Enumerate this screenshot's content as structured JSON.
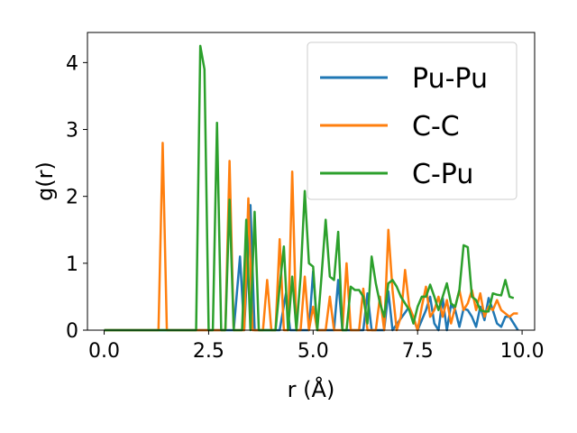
{
  "chart_data": {
    "type": "line",
    "title": "",
    "xlabel": "r (Å)",
    "ylabel": "g(r)",
    "xlim": [
      -0.4,
      10.3
    ],
    "ylim": [
      0,
      4.45
    ],
    "xticks": [
      0.0,
      2.5,
      5.0,
      7.5,
      10.0
    ],
    "xtick_labels": [
      "0.0",
      "2.5",
      "5.0",
      "7.5",
      "10.0"
    ],
    "yticks": [
      0,
      1,
      2,
      3,
      4
    ],
    "ytick_labels": [
      "0",
      "1",
      "2",
      "3",
      "4"
    ],
    "grid": false,
    "legend": "top-right",
    "series": [
      {
        "name": "Pu-Pu",
        "color": "#1f77b4",
        "points": [
          [
            0,
            0
          ],
          [
            2.9,
            0
          ],
          [
            3.1,
            0
          ],
          [
            3.25,
            1.1
          ],
          [
            3.35,
            0
          ],
          [
            3.5,
            1.87
          ],
          [
            3.6,
            0
          ],
          [
            4.2,
            0
          ],
          [
            4.35,
            0.55
          ],
          [
            4.45,
            0
          ],
          [
            4.9,
            0
          ],
          [
            5.0,
            0.88
          ],
          [
            5.1,
            0
          ],
          [
            5.5,
            0
          ],
          [
            5.6,
            0.75
          ],
          [
            5.7,
            0
          ],
          [
            6.2,
            0
          ],
          [
            6.3,
            0.55
          ],
          [
            6.4,
            0
          ],
          [
            6.7,
            0
          ],
          [
            6.8,
            0.58
          ],
          [
            6.9,
            0
          ],
          [
            7.3,
            0.35
          ],
          [
            7.5,
            0
          ],
          [
            7.7,
            0.3
          ],
          [
            7.8,
            0.5
          ],
          [
            7.9,
            0.1
          ],
          [
            8.0,
            0
          ],
          [
            8.1,
            0.48
          ],
          [
            8.2,
            0
          ],
          [
            8.3,
            0.38
          ],
          [
            8.4,
            0.3
          ],
          [
            8.5,
            0.05
          ],
          [
            8.6,
            0.32
          ],
          [
            8.7,
            0.3
          ],
          [
            8.8,
            0.2
          ],
          [
            8.9,
            0.05
          ],
          [
            9.0,
            0.35
          ],
          [
            9.1,
            0.15
          ],
          [
            9.2,
            0.48
          ],
          [
            9.3,
            0.3
          ],
          [
            9.4,
            0.1
          ],
          [
            9.5,
            0.05
          ],
          [
            9.6,
            0.2
          ],
          [
            9.7,
            0.2
          ],
          [
            9.8,
            0.1
          ],
          [
            9.9,
            0
          ]
        ]
      },
      {
        "name": "C-C",
        "color": "#ff7f0e",
        "points": [
          [
            0,
            0
          ],
          [
            1.3,
            0
          ],
          [
            1.4,
            2.8
          ],
          [
            1.5,
            0
          ],
          [
            2.9,
            0
          ],
          [
            3.0,
            2.53
          ],
          [
            3.1,
            0
          ],
          [
            3.35,
            0
          ],
          [
            3.45,
            1.97
          ],
          [
            3.55,
            0
          ],
          [
            3.8,
            0
          ],
          [
            3.9,
            0.75
          ],
          [
            4.0,
            0
          ],
          [
            4.1,
            0
          ],
          [
            4.2,
            1.36
          ],
          [
            4.3,
            0
          ],
          [
            4.4,
            0
          ],
          [
            4.5,
            2.37
          ],
          [
            4.6,
            0
          ],
          [
            4.7,
            0
          ],
          [
            4.8,
            0.8
          ],
          [
            4.9,
            0
          ],
          [
            5.0,
            0.35
          ],
          [
            5.1,
            0
          ],
          [
            5.3,
            0
          ],
          [
            5.4,
            0.5
          ],
          [
            5.5,
            0
          ],
          [
            5.7,
            0
          ],
          [
            5.8,
            1.0
          ],
          [
            5.9,
            0
          ],
          [
            6.1,
            0
          ],
          [
            6.2,
            0.62
          ],
          [
            6.3,
            0
          ],
          [
            6.5,
            0
          ],
          [
            6.6,
            0.5
          ],
          [
            6.7,
            0
          ],
          [
            6.8,
            1.5
          ],
          [
            6.9,
            0.6
          ],
          [
            7.0,
            0
          ],
          [
            7.1,
            0.2
          ],
          [
            7.2,
            0.9
          ],
          [
            7.3,
            0.35
          ],
          [
            7.4,
            0.2
          ],
          [
            7.5,
            0
          ],
          [
            7.6,
            0.35
          ],
          [
            7.7,
            0.65
          ],
          [
            7.8,
            0.2
          ],
          [
            7.9,
            0.3
          ],
          [
            8.0,
            0.5
          ],
          [
            8.1,
            0.2
          ],
          [
            8.2,
            0.45
          ],
          [
            8.3,
            0.1
          ],
          [
            8.4,
            0.35
          ],
          [
            8.5,
            0.6
          ],
          [
            8.6,
            0.3
          ],
          [
            8.7,
            0.4
          ],
          [
            8.8,
            0.6
          ],
          [
            8.9,
            0.3
          ],
          [
            9.0,
            0.55
          ],
          [
            9.1,
            0.2
          ],
          [
            9.2,
            0.35
          ],
          [
            9.3,
            0.3
          ],
          [
            9.4,
            0.45
          ],
          [
            9.5,
            0.3
          ],
          [
            9.6,
            0.25
          ],
          [
            9.7,
            0.2
          ],
          [
            9.8,
            0.25
          ],
          [
            9.9,
            0.25
          ]
        ]
      },
      {
        "name": "C-Pu",
        "color": "#2ca02c",
        "points": [
          [
            0,
            0
          ],
          [
            2.2,
            0
          ],
          [
            2.3,
            4.25
          ],
          [
            2.4,
            3.9
          ],
          [
            2.5,
            0
          ],
          [
            2.6,
            0
          ],
          [
            2.7,
            3.1
          ],
          [
            2.8,
            0
          ],
          [
            2.9,
            0
          ],
          [
            3.0,
            1.95
          ],
          [
            3.1,
            0
          ],
          [
            3.3,
            0
          ],
          [
            3.4,
            1.65
          ],
          [
            3.5,
            0
          ],
          [
            3.6,
            1.77
          ],
          [
            3.7,
            0
          ],
          [
            4.1,
            0
          ],
          [
            4.2,
            0.65
          ],
          [
            4.3,
            1.25
          ],
          [
            4.4,
            0
          ],
          [
            4.5,
            0.8
          ],
          [
            4.6,
            0
          ],
          [
            4.7,
            0.8
          ],
          [
            4.8,
            2.08
          ],
          [
            4.9,
            1.0
          ],
          [
            5.0,
            0.95
          ],
          [
            5.1,
            0
          ],
          [
            5.2,
            0.8
          ],
          [
            5.3,
            1.65
          ],
          [
            5.4,
            0.8
          ],
          [
            5.5,
            0.75
          ],
          [
            5.6,
            1.47
          ],
          [
            5.7,
            0
          ],
          [
            5.8,
            0
          ],
          [
            5.9,
            0.65
          ],
          [
            6.0,
            0.6
          ],
          [
            6.1,
            0.6
          ],
          [
            6.2,
            0.5
          ],
          [
            6.3,
            0.1
          ],
          [
            6.4,
            1.1
          ],
          [
            6.5,
            0.7
          ],
          [
            6.6,
            0.4
          ],
          [
            6.7,
            0.2
          ],
          [
            6.8,
            0.7
          ],
          [
            6.9,
            0.75
          ],
          [
            7.0,
            0.65
          ],
          [
            7.1,
            0.5
          ],
          [
            7.2,
            0.4
          ],
          [
            7.3,
            0.3
          ],
          [
            7.4,
            0.1
          ],
          [
            7.5,
            0.35
          ],
          [
            7.6,
            0.5
          ],
          [
            7.7,
            0.5
          ],
          [
            7.8,
            0.68
          ],
          [
            7.9,
            0.5
          ],
          [
            8.0,
            0.3
          ],
          [
            8.1,
            0.5
          ],
          [
            8.2,
            0.7
          ],
          [
            8.3,
            0.4
          ],
          [
            8.4,
            0.35
          ],
          [
            8.5,
            0.6
          ],
          [
            8.6,
            1.27
          ],
          [
            8.7,
            1.24
          ],
          [
            8.8,
            0.5
          ],
          [
            8.9,
            0.45
          ],
          [
            9.0,
            0.3
          ],
          [
            9.1,
            0.28
          ],
          [
            9.2,
            0.28
          ],
          [
            9.3,
            0.55
          ],
          [
            9.4,
            0.53
          ],
          [
            9.5,
            0.52
          ],
          [
            9.6,
            0.75
          ],
          [
            9.7,
            0.5
          ],
          [
            9.8,
            0.48
          ]
        ]
      }
    ]
  }
}
